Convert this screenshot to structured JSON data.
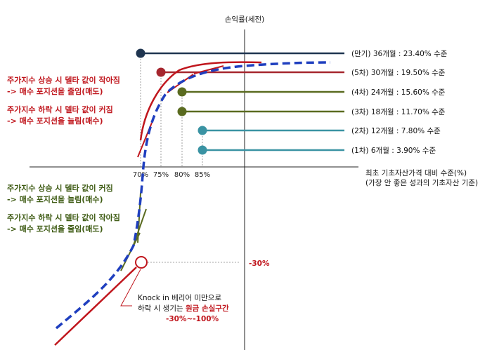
{
  "axis": {
    "y_title": "손익률(세전)",
    "x_title_line1": "최초 기초자산가격 대비 수준(%)",
    "x_title_line2": "(가장 안 좋은 성과의 기초자산 기준)",
    "x_ticks": [
      "70%",
      "75%",
      "80%",
      "85%"
    ],
    "loss_mark": "-30%"
  },
  "payoffs": [
    {
      "label": "(만기) 36개월 : 23.40% 수준",
      "barrier": 70,
      "return": 23.4,
      "color": "#1f3550"
    },
    {
      "label": "(5차) 30개월 : 19.50% 수준",
      "barrier": 75,
      "return": 19.5,
      "color": "#a6262e"
    },
    {
      "label": "(4차) 24개월 : 15.60% 수준",
      "barrier": 80,
      "return": 15.6,
      "color": "#5a6b20"
    },
    {
      "label": "(3차) 18개월 : 11.70% 수준",
      "barrier": 80,
      "return": 11.7,
      "color": "#5a6b20"
    },
    {
      "label": "(2차) 12개월 : 7.80% 수준",
      "barrier": 85,
      "return": 7.8,
      "color": "#3a93a3"
    },
    {
      "label": "(1차) 6개월 : 3.90% 수준",
      "barrier": 85,
      "return": 3.9,
      "color": "#3a93a3"
    }
  ],
  "notes_upper": {
    "line1": "주가지수 상승 시 델타 값이 작아짐",
    "line2": "-> 매수 포지션을 줄임(매도)",
    "line3": "주가지수 하락 시 델타 값이 커짐",
    "line4": "-> 매수 포지션을 늘림(매수)"
  },
  "notes_lower": {
    "line1": "주가지수 상승 시 델타 값이 커짐",
    "line2": "-> 매수 포지션을 늘림(매수)",
    "line3": "주가지수 하락 시 델타 값이 작아짐",
    "line4": "-> 매수 포지션을 줄임(매도)"
  },
  "knock_in": {
    "line1": "Knock in 베리어 미만으로",
    "line2_plain": "하락 시 생기는 ",
    "line2_red": "원금 손실구간",
    "line3": "-30%~-100%"
  },
  "colors": {
    "red": "#c0161d",
    "green": "#3d5a12",
    "curve": "#1f3fbf",
    "axis": "#222222"
  }
}
